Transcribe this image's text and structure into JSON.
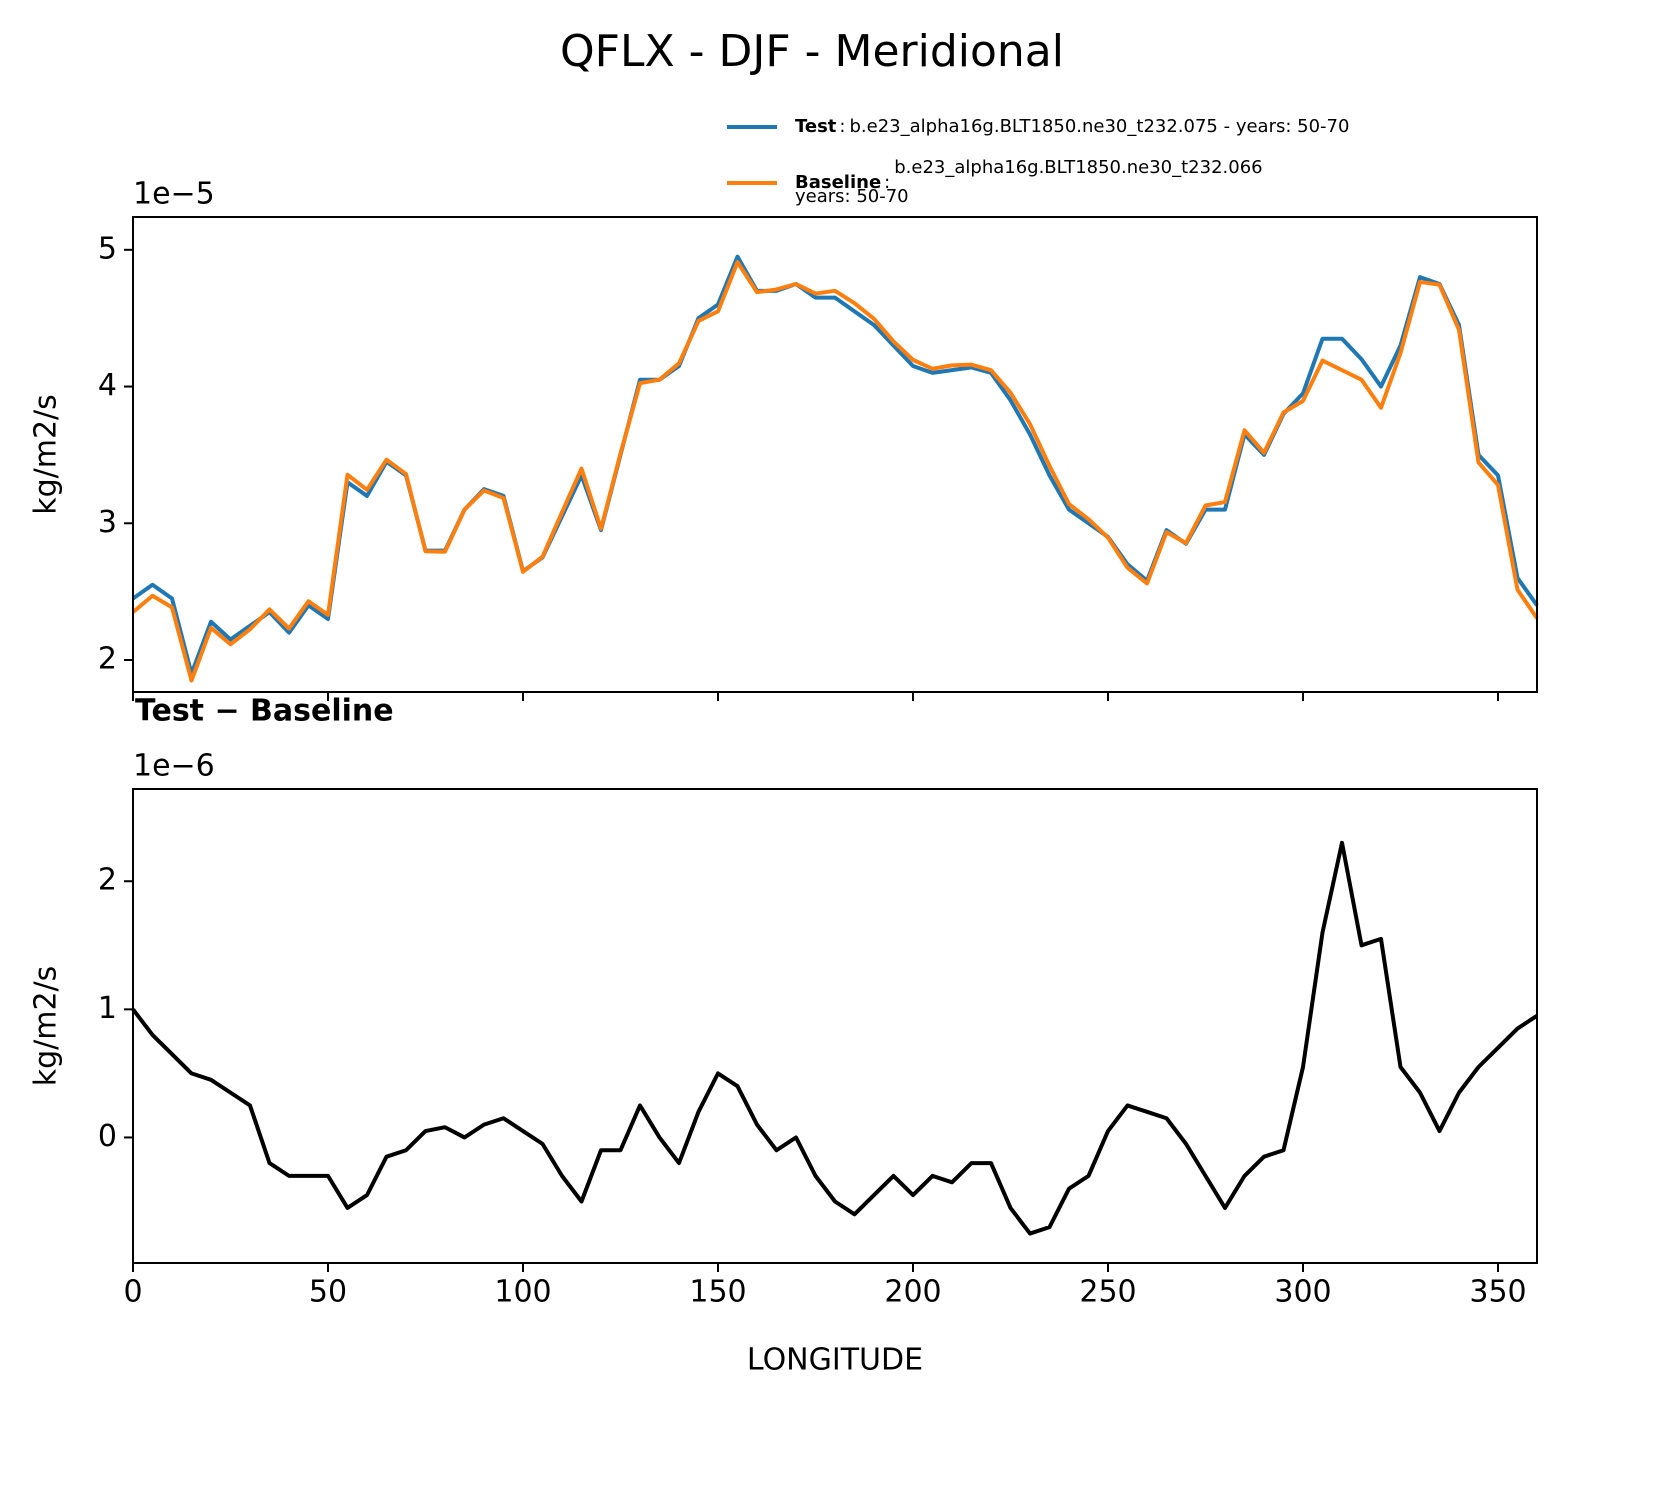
{
  "chart_data": [
    {
      "type": "line",
      "title": "QFLX - DJF - Meridional",
      "y_offset_label": "1e−5",
      "ylabel": "kg/m2/s",
      "x": [
        0,
        5,
        10,
        15,
        20,
        25,
        30,
        35,
        40,
        45,
        50,
        55,
        60,
        65,
        70,
        75,
        80,
        85,
        90,
        95,
        100,
        105,
        110,
        115,
        120,
        125,
        130,
        135,
        140,
        145,
        150,
        155,
        160,
        165,
        170,
        175,
        180,
        185,
        190,
        195,
        200,
        205,
        210,
        215,
        220,
        225,
        230,
        235,
        240,
        245,
        250,
        255,
        260,
        265,
        270,
        275,
        280,
        285,
        290,
        295,
        300,
        305,
        310,
        315,
        320,
        325,
        330,
        335,
        340,
        345,
        350,
        355,
        360
      ],
      "series": [
        {
          "name": "Test",
          "case": [
            "b.e23_alpha16g.BLT1850.ne30_t232.075 - years: 50-70"
          ],
          "color": "#1f77b4",
          "values": [
            2.45,
            2.55,
            2.45,
            1.9,
            2.28,
            2.15,
            2.25,
            2.35,
            2.2,
            2.4,
            2.3,
            3.3,
            3.2,
            3.45,
            3.35,
            2.8,
            2.8,
            3.1,
            3.25,
            3.2,
            2.65,
            2.75,
            3.05,
            3.35,
            2.95,
            3.5,
            4.05,
            4.05,
            4.15,
            4.5,
            4.6,
            4.95,
            4.7,
            4.7,
            4.75,
            4.65,
            4.65,
            4.55,
            4.45,
            4.3,
            4.15,
            4.1,
            4.12,
            4.14,
            4.1,
            3.9,
            3.65,
            3.35,
            3.1,
            3.0,
            2.9,
            2.7,
            2.58,
            2.95,
            2.85,
            3.1,
            3.1,
            3.65,
            3.5,
            3.8,
            3.95,
            4.35,
            4.35,
            4.2,
            4.0,
            4.3,
            4.8,
            4.75,
            4.45,
            3.5,
            3.35,
            2.6,
            2.4
          ]
        },
        {
          "name": "Baseline",
          "case": [
            "b.e23_alpha16g.BLT1850.ne30_t232.066",
            "years: 50-70"
          ],
          "color": "#ff7f0e",
          "values": [
            2.35,
            2.47,
            2.385,
            1.85,
            2.235,
            2.115,
            2.225,
            2.37,
            2.23,
            2.43,
            2.33,
            3.355,
            3.245,
            3.465,
            3.36,
            2.795,
            2.792,
            3.1,
            3.24,
            3.185,
            2.645,
            2.755,
            3.08,
            3.4,
            2.96,
            3.51,
            4.025,
            4.05,
            4.17,
            4.48,
            4.55,
            4.91,
            4.69,
            4.71,
            4.75,
            4.68,
            4.7,
            4.61,
            4.495,
            4.33,
            4.195,
            4.13,
            4.155,
            4.16,
            4.12,
            3.955,
            3.725,
            3.42,
            3.14,
            3.03,
            2.895,
            2.675,
            2.56,
            2.935,
            2.855,
            3.13,
            3.155,
            3.68,
            3.515,
            3.81,
            3.895,
            4.19,
            4.12,
            4.05,
            3.845,
            4.245,
            4.765,
            4.745,
            4.415,
            3.445,
            3.28,
            2.515,
            2.305
          ]
        }
      ],
      "xlim": [
        0,
        360
      ],
      "xticks": [
        0,
        50,
        100,
        150,
        200,
        250,
        300,
        350
      ],
      "x_tick_labels": false,
      "ylim": [
        1.766,
        5.24
      ],
      "yticks": [
        2,
        3,
        4,
        5
      ]
    },
    {
      "type": "line",
      "title": "Test − Baseline",
      "y_offset_label": "1e−6",
      "ylabel": "kg/m2/s",
      "xlabel": "LONGITUDE",
      "x": [
        0,
        5,
        10,
        15,
        20,
        25,
        30,
        35,
        40,
        45,
        50,
        55,
        60,
        65,
        70,
        75,
        80,
        85,
        90,
        95,
        100,
        105,
        110,
        115,
        120,
        125,
        130,
        135,
        140,
        145,
        150,
        155,
        160,
        165,
        170,
        175,
        180,
        185,
        190,
        195,
        200,
        205,
        210,
        215,
        220,
        225,
        230,
        235,
        240,
        245,
        250,
        255,
        260,
        265,
        270,
        275,
        280,
        285,
        290,
        295,
        300,
        305,
        310,
        315,
        320,
        325,
        330,
        335,
        340,
        345,
        350,
        355,
        360
      ],
      "series": [
        {
          "color": "#000000",
          "values": [
            1.0,
            0.8,
            0.65,
            0.5,
            0.45,
            0.35,
            0.25,
            -0.2,
            -0.3,
            -0.3,
            -0.3,
            -0.55,
            -0.45,
            -0.15,
            -0.1,
            0.05,
            0.08,
            0.0,
            0.1,
            0.15,
            0.05,
            -0.05,
            -0.3,
            -0.5,
            -0.1,
            -0.1,
            0.25,
            0.0,
            -0.2,
            0.2,
            0.5,
            0.4,
            0.1,
            -0.1,
            0.0,
            -0.3,
            -0.5,
            -0.6,
            -0.45,
            -0.3,
            -0.45,
            -0.3,
            -0.35,
            -0.2,
            -0.2,
            -0.55,
            -0.75,
            -0.7,
            -0.4,
            -0.3,
            0.05,
            0.25,
            0.2,
            0.15,
            -0.05,
            -0.3,
            -0.55,
            -0.3,
            -0.15,
            -0.1,
            0.55,
            1.6,
            2.3,
            1.5,
            1.55,
            0.55,
            0.35,
            0.05,
            0.35,
            0.55,
            0.7,
            0.85,
            0.95
          ]
        }
      ],
      "xlim": [
        0,
        360
      ],
      "xticks": [
        0,
        50,
        100,
        150,
        200,
        250,
        300,
        350
      ],
      "x_tick_labels": true,
      "ylim": [
        -0.98,
        2.72
      ],
      "yticks": [
        0,
        1,
        2
      ]
    }
  ]
}
